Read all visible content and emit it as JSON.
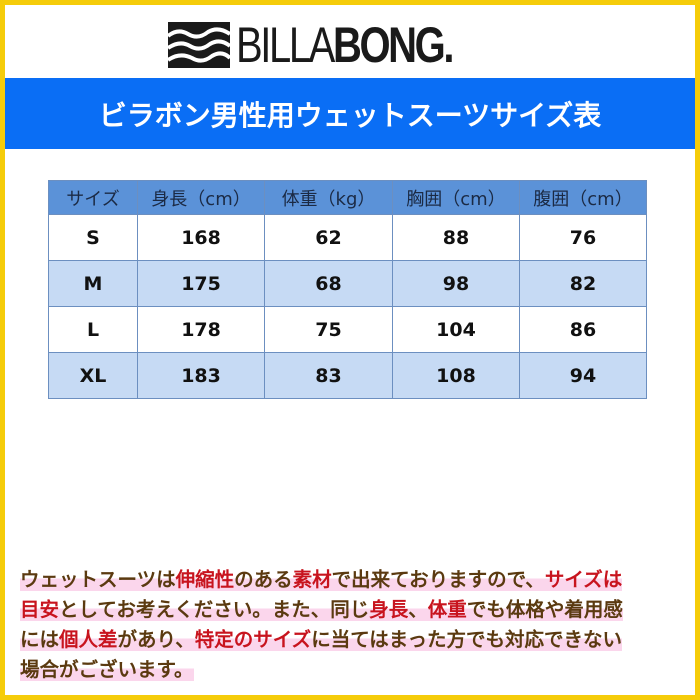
{
  "brand": {
    "logo_text": "BILLABONG.",
    "logo_thin": "BILLA",
    "logo_bold": "BONG."
  },
  "title": "ビラボン男性用ウェットスーツサイズ表",
  "colors": {
    "border": "#f5cc0a",
    "band": "#0a6ef5",
    "header": "#5b92d8",
    "alt_row": "#c6daf4",
    "note_red": "#c8141e",
    "note_dark": "#5b3a10"
  },
  "table": {
    "headers": [
      "サイズ",
      "身長（cm）",
      "体重（kg）",
      "胸囲（cm）",
      "腹囲（cm）"
    ],
    "rows": [
      [
        "S",
        "168",
        "62",
        "88",
        "76"
      ],
      [
        "M",
        "175",
        "68",
        "98",
        "82"
      ],
      [
        "L",
        "178",
        "75",
        "104",
        "86"
      ],
      [
        "XL",
        "183",
        "83",
        "108",
        "94"
      ]
    ]
  },
  "notes": [
    [
      {
        "t": "ウェットスーツは",
        "r": false
      },
      {
        "t": "伸縮性",
        "r": true
      },
      {
        "t": "のある",
        "r": false
      },
      {
        "t": "素材",
        "r": true
      },
      {
        "t": "で出来ておりますので、",
        "r": false
      },
      {
        "t": "サイズは",
        "r": true
      }
    ],
    [
      {
        "t": "目安",
        "r": true
      },
      {
        "t": "としてお考えください。また、同じ",
        "r": false
      },
      {
        "t": "身長",
        "r": true
      },
      {
        "t": "、",
        "r": false
      },
      {
        "t": "体重",
        "r": true
      },
      {
        "t": "でも体格や着用感",
        "r": false
      }
    ],
    [
      {
        "t": "には",
        "r": false
      },
      {
        "t": "個人差",
        "r": true
      },
      {
        "t": "があり、",
        "r": false
      },
      {
        "t": "特定のサイズ",
        "r": true
      },
      {
        "t": "に当てはまった方でも対応できない",
        "r": false
      }
    ],
    [
      {
        "t": "場合がございます。",
        "r": false
      }
    ]
  ]
}
